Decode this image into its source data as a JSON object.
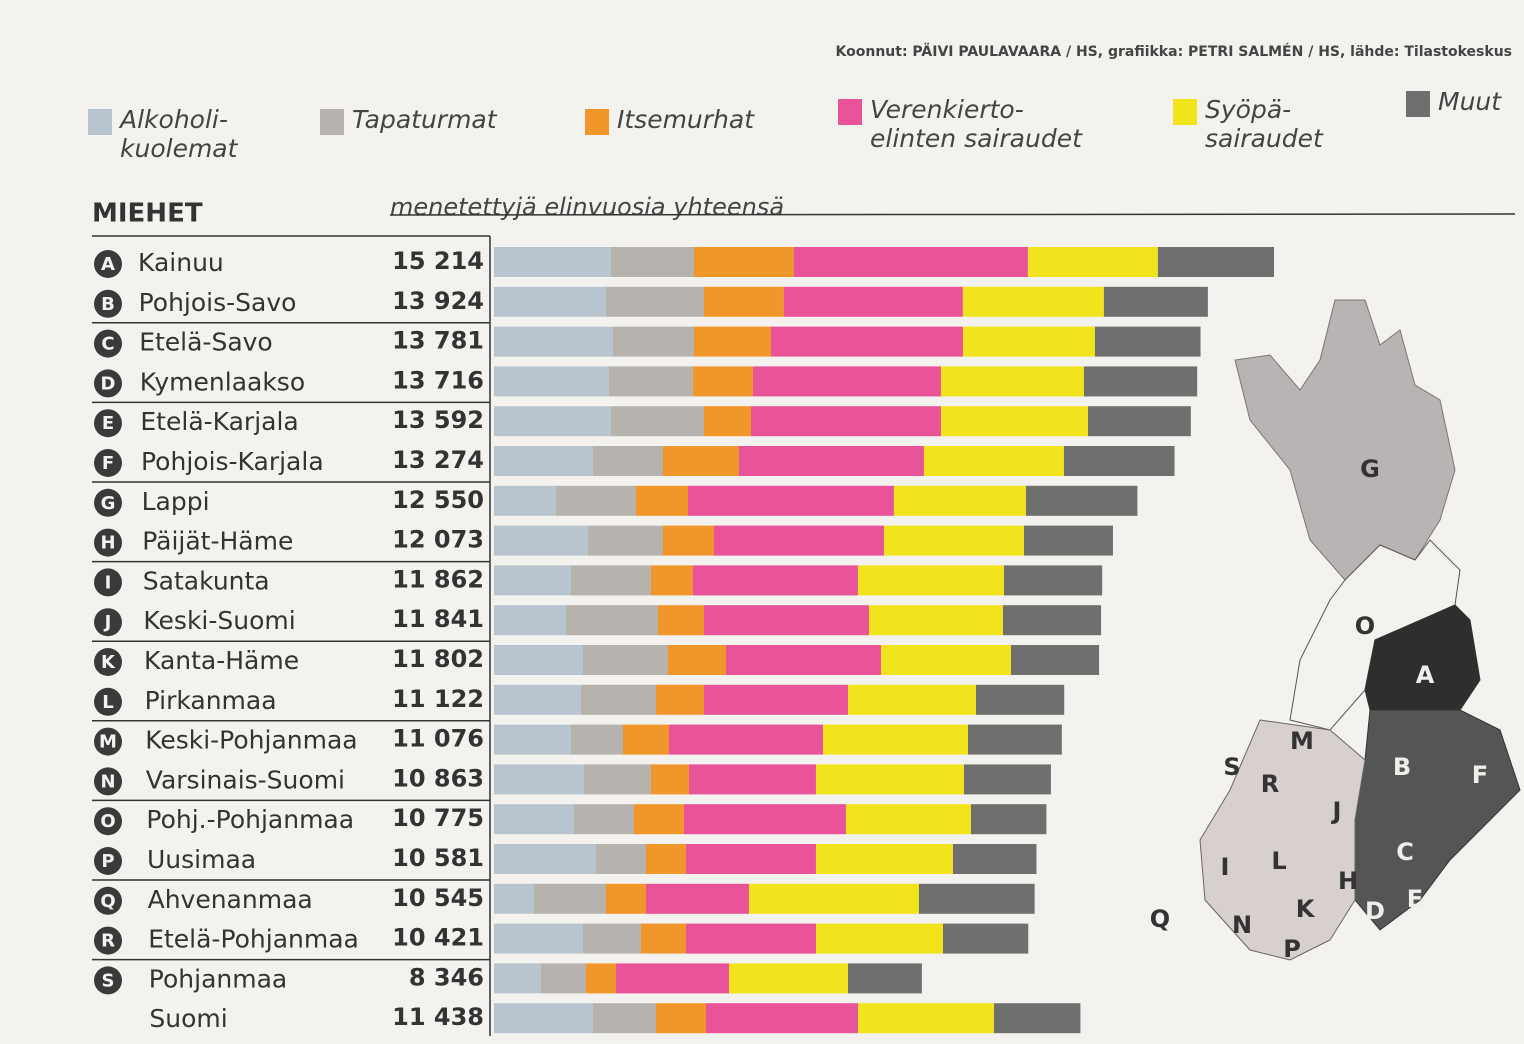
{
  "chart_data": {
    "type": "bar",
    "orientation": "horizontal",
    "stacked": true,
    "source": "Koonnut: PÄIVI PAULAVAARA / HS, grafiikka: PETRI SALMÉN / HS, lähde: Tilastokeskus",
    "title": "MIEHET",
    "subtitle": "menetettyjä elinvuosia yhteensä",
    "category_letters": [
      "A",
      "B",
      "C",
      "D",
      "E",
      "F",
      "G",
      "H",
      "I",
      "J",
      "K",
      "L",
      "M",
      "N",
      "O",
      "P",
      "Q",
      "R",
      "S",
      null
    ],
    "categories": [
      "Kainuu",
      "Pohjois-Savo",
      "Etelä-Savo",
      "Kymenlaakso",
      "Etelä-Karjala",
      "Pohjois-Karjala",
      "Lappi",
      "Päijät-Häme",
      "Satakunta",
      "Keski-Suomi",
      "Kanta-Häme",
      "Pirkanmaa",
      "Keski-Pohjanmaa",
      "Varsinais-Suomi",
      "Pohj.-Pohjanmaa",
      "Uusimaa",
      "Ahvenanmaa",
      "Etelä-Pohjanmaa",
      "Pohjanmaa",
      "Suomi"
    ],
    "total_labels": [
      "15 214",
      "13 924",
      "13 781",
      "13 716",
      "13 592",
      "13 274",
      "12 550",
      "12 073",
      "11 862",
      "11 841",
      "11 802",
      "11 122",
      "11 076",
      "10 863",
      "10 775",
      "10 581",
      "10 545",
      "10 421",
      "8 346",
      "11 438"
    ],
    "series": [
      {
        "name": "Alkoholi-kuolemat",
        "color": "#b9c5ce",
        "values": [
          2282,
          2184,
          2321,
          2243,
          2282,
          1931,
          1209,
          1833,
          1502,
          1404,
          1736,
          1697,
          1502,
          1755,
          1560,
          1989,
          780,
          1736,
          917,
          1931
        ]
      },
      {
        "name": "Tapaturmat",
        "color": "#b6b3af",
        "values": [
          1619,
          1911,
          1580,
          1638,
          1814,
          1365,
          1560,
          1463,
          1560,
          1795,
          1658,
          1463,
          1014,
          1307,
          1170,
          975,
          1404,
          1131,
          878,
          1229
        ]
      },
      {
        "name": "Itsemurhat",
        "color": "#f0962a",
        "values": [
          1950,
          1560,
          1502,
          1170,
          917,
          1482,
          1014,
          995,
          819,
          897,
          1131,
          936,
          897,
          741,
          975,
          780,
          780,
          878,
          585,
          975
        ]
      },
      {
        "name": "Verenkierto-elinten sairaudet",
        "color": "#e8539a",
        "values": [
          4563,
          3491,
          3744,
          3667,
          3706,
          3608,
          4018,
          3316,
          3218,
          3218,
          3023,
          2809,
          3004,
          2477,
          3160,
          2536,
          2009,
          2536,
          2204,
          2965
        ]
      },
      {
        "name": "Syöpä-sairaudet",
        "color": "#f2e41c",
        "values": [
          2535,
          2750,
          2574,
          2789,
          2867,
          2731,
          2575,
          2731,
          2848,
          2614,
          2536,
          2497,
          2828,
          2887,
          2438,
          2672,
          3316,
          2477,
          2321,
          2652
        ]
      },
      {
        "name": "Muut",
        "color": "#6f6f6f",
        "values": [
          2265,
          2028,
          2060,
          2209,
          2006,
          2157,
          2174,
          1735,
          1915,
          1913,
          1718,
          1720,
          1831,
          1696,
          1472,
          1629,
          2256,
          1663,
          1441,
          1686
        ]
      }
    ],
    "map": {
      "labels": [
        "G",
        "O",
        "A",
        "M",
        "B",
        "F",
        "S",
        "R",
        "J",
        "C",
        "L",
        "I",
        "H",
        "K",
        "D",
        "E",
        "Q",
        "N",
        "P"
      ]
    }
  }
}
